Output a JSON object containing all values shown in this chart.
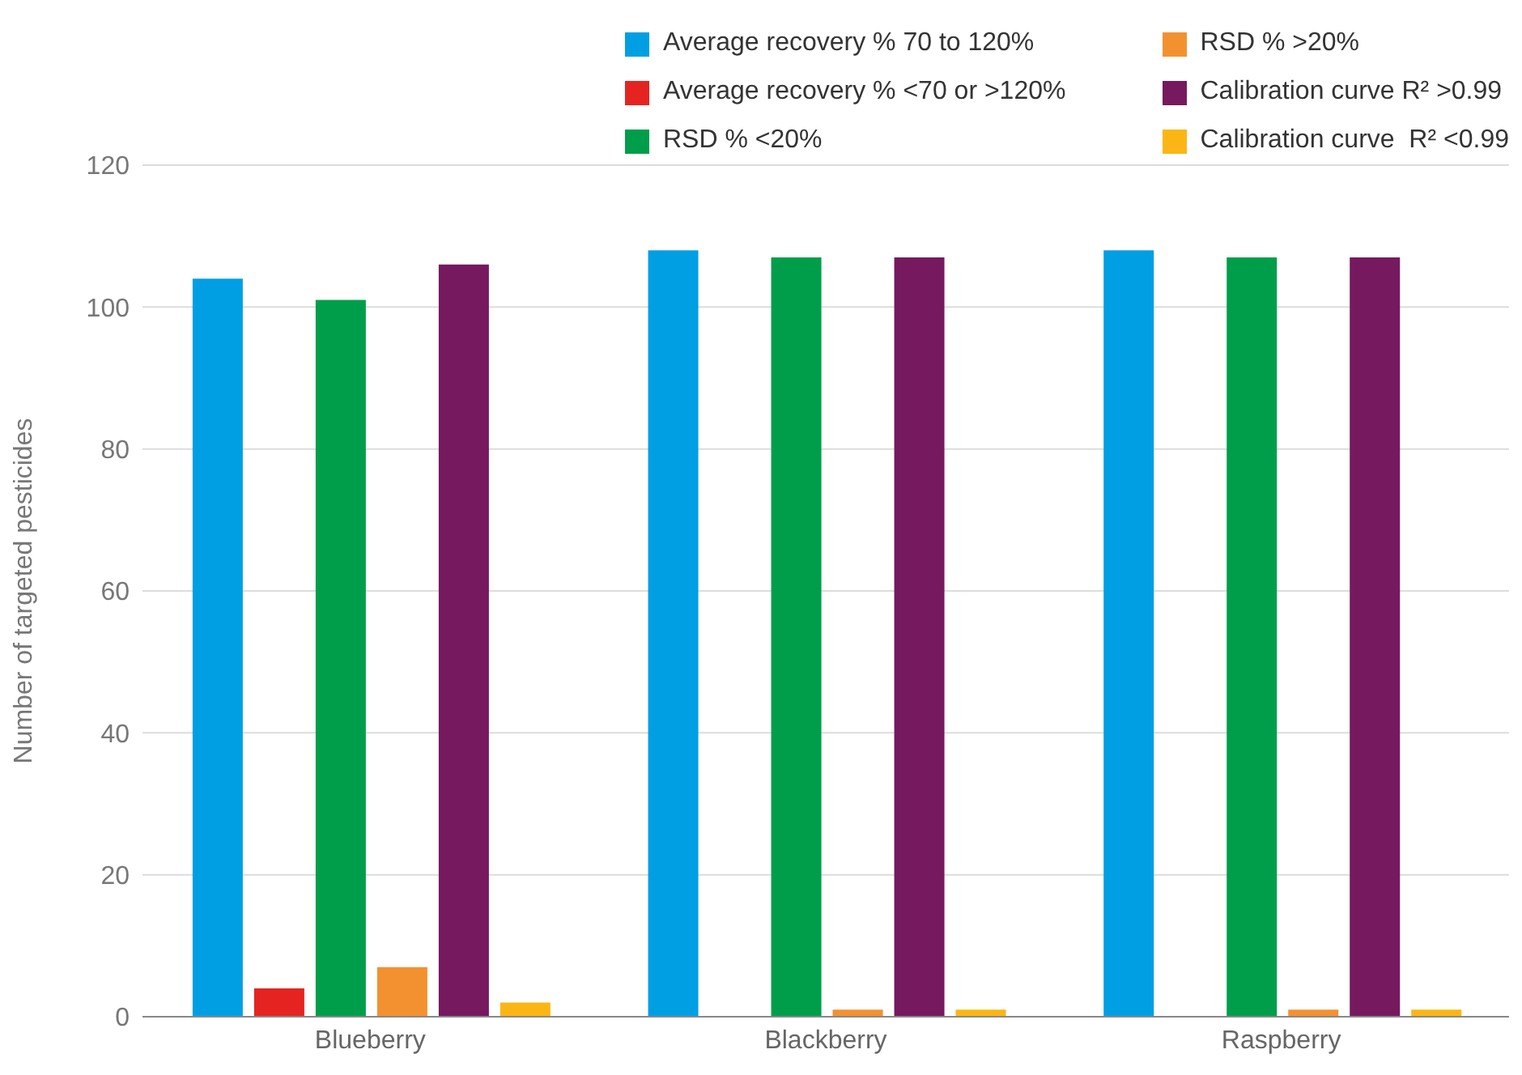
{
  "chart_data": {
    "type": "bar",
    "ylabel": "Number of targeted pesticides",
    "categories": [
      "Blueberry",
      "Blackberry",
      "Raspberry"
    ],
    "series": [
      {
        "name": "Average recovery % 70 to 120%",
        "color": "#009fe3",
        "values": [
          104,
          108,
          108
        ]
      },
      {
        "name": "Average recovery % <70 or >120%",
        "color": "#e52421",
        "values": [
          4,
          0,
          0
        ]
      },
      {
        "name": "RSD % <20%",
        "color": "#009e4a",
        "values": [
          101,
          107,
          107
        ]
      },
      {
        "name": "RSD % >20%",
        "color": "#f39131",
        "values": [
          7,
          1,
          1
        ]
      },
      {
        "name": "Calibration curve R² >0.99",
        "color": "#76195f",
        "values": [
          106,
          107,
          107
        ]
      },
      {
        "name": "Calibration curve  R² <0.99",
        "color": "#fbb616",
        "values": [
          2,
          1,
          1
        ]
      }
    ],
    "ylim": [
      0,
      120
    ],
    "yticks": [
      0,
      20,
      40,
      60,
      80,
      100,
      120
    ],
    "grid": "y",
    "legend": "top right"
  }
}
